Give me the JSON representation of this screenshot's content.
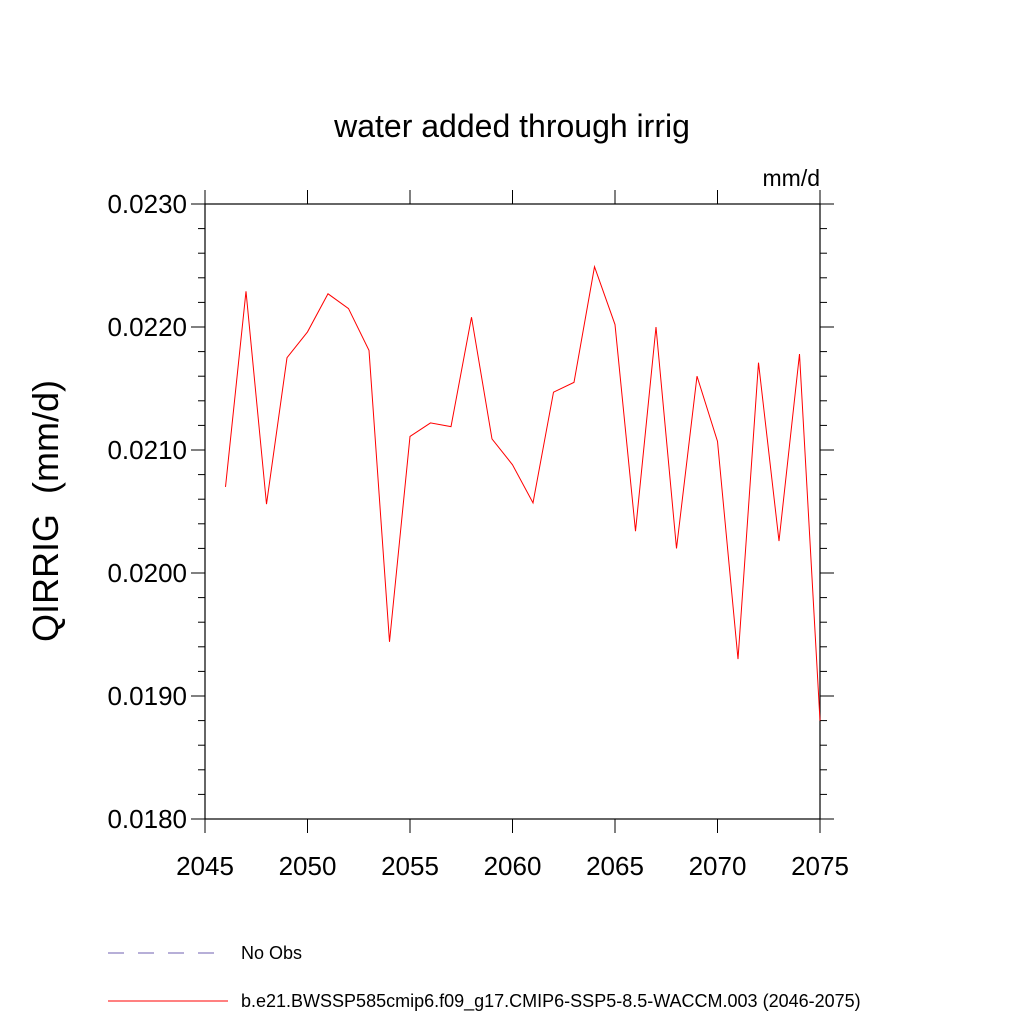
{
  "chart_data": {
    "type": "line",
    "title": "water added through irrig",
    "units_label": "mm/d",
    "ylabel": "QIRRIG  (mm/d)",
    "xlabel": "",
    "xlim": [
      2045,
      2075
    ],
    "ylim": [
      0.018,
      0.023
    ],
    "x_ticks": [
      2045,
      2050,
      2055,
      2060,
      2065,
      2070,
      2075
    ],
    "x_tick_labels": [
      "2045",
      "2050",
      "2055",
      "2060",
      "2065",
      "2070",
      "2075"
    ],
    "y_ticks": [
      0.018,
      0.019,
      0.02,
      0.021,
      0.022,
      0.023
    ],
    "y_tick_labels": [
      "0.0180",
      "0.0190",
      "0.0200",
      "0.0210",
      "0.0220",
      "0.0230"
    ],
    "grid": false,
    "legend_position": "bottom",
    "series": [
      {
        "name": "b.e21.BWSSP585cmip6.f09_g17.CMIP6-SSP5-8.5-WACCM.003 (2046-2075)",
        "color": "#ff0000",
        "style": "solid",
        "x": [
          2046,
          2047,
          2048,
          2049,
          2050,
          2051,
          2052,
          2053,
          2054,
          2055,
          2056,
          2057,
          2058,
          2059,
          2060,
          2061,
          2062,
          2063,
          2064,
          2065,
          2066,
          2067,
          2068,
          2069,
          2070,
          2071,
          2072,
          2073,
          2074,
          2075
        ],
        "values": [
          0.0207,
          0.02229,
          0.02056,
          0.02175,
          0.02196,
          0.02227,
          0.02215,
          0.02181,
          0.01944,
          0.02111,
          0.02122,
          0.02119,
          0.02208,
          0.02109,
          0.02088,
          0.02057,
          0.02147,
          0.02155,
          0.02249,
          0.02202,
          0.02034,
          0.022,
          0.0202,
          0.0216,
          0.02107,
          0.0193,
          0.02171,
          0.02026,
          0.02178,
          0.0188
        ]
      }
    ],
    "legend": [
      {
        "label": "No Obs",
        "color": "#6f5fb0",
        "style": "dashed"
      },
      {
        "label": "b.e21.BWSSP585cmip6.f09_g17.CMIP6-SSP5-8.5-WACCM.003 (2046-2075)",
        "color": "#ff0000",
        "style": "solid"
      }
    ]
  }
}
